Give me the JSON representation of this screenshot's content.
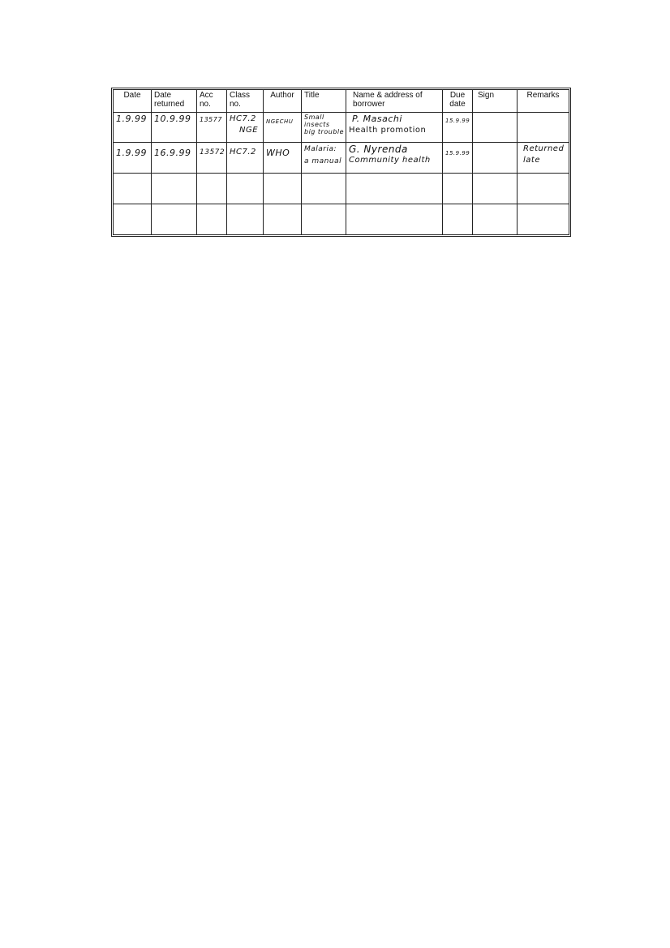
{
  "table": {
    "headers": [
      "Date",
      "Date returned",
      "Acc no.",
      "Class no.",
      "Author",
      "Title",
      "Name & address of borrower",
      "Due date",
      "Sign",
      "Remarks"
    ],
    "rows": [
      {
        "date": "1.9.99",
        "date_returned": "10.9.99",
        "acc_no": "13577",
        "class_no": [
          "HC7.2",
          "NGE"
        ],
        "author": "NGECHU",
        "title": [
          "Small",
          "insects",
          "big trouble"
        ],
        "borrower": [
          "P. Masachi",
          "Health promotion"
        ],
        "due_date": "15.9.99",
        "sign": "",
        "remarks": []
      },
      {
        "date": "1.9.99",
        "date_returned": "16.9.99",
        "acc_no": "13572",
        "class_no": [
          "HC7.2"
        ],
        "author": "WHO",
        "title": [
          "Malaria:",
          "a manual"
        ],
        "borrower": [
          "G. Nyrenda",
          "Community health"
        ],
        "due_date": "15.9.99",
        "sign": "",
        "remarks": [
          "Returned",
          "late"
        ]
      }
    ]
  }
}
